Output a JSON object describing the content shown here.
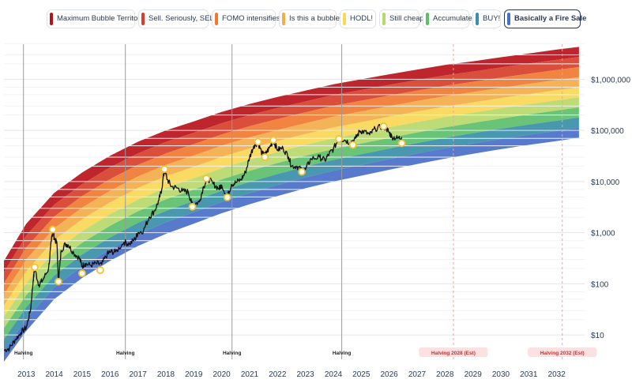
{
  "legend": [
    {
      "label": "Maximum Bubble Territory",
      "color": "#b8121b"
    },
    {
      "label": "Sell. Seriously, SELL!",
      "color": "#d6402a"
    },
    {
      "label": "FOMO intensifies",
      "color": "#ef7a30"
    },
    {
      "label": "Is this a bubble?",
      "color": "#f4ad4a"
    },
    {
      "label": "HODL!",
      "color": "#f8d857"
    },
    {
      "label": "Still cheap",
      "color": "#b7d86a"
    },
    {
      "label": "Accumulate",
      "color": "#5cbf6c"
    },
    {
      "label": "BUY!",
      "color": "#3a8fa8"
    },
    {
      "label": "Basically a Fire Sale",
      "color": "#4a6fc8"
    }
  ],
  "colors": {
    "bands": [
      "#b8121b",
      "#d6402a",
      "#ef7a30",
      "#f4ad4a",
      "#f8d857",
      "#b7d86a",
      "#5cbf6c",
      "#3a8fa8",
      "#4a6fc8"
    ],
    "price_line": "#111111",
    "marker_stroke": "#f2c22e",
    "halving_line": "#9a9a9a",
    "halving_est_line": "#f2a0a0"
  },
  "chart_data": {
    "type": "line",
    "title": "",
    "xlabel": "",
    "ylabel": "",
    "y_scale": "log",
    "x_range": [
      2012.2,
      2033
    ],
    "y_range": [
      3,
      6000000
    ],
    "y_ticks": [
      {
        "value": 10,
        "label": "$10"
      },
      {
        "value": 100,
        "label": "$100"
      },
      {
        "value": 1000,
        "label": "$1,000"
      },
      {
        "value": 10000,
        "label": "$10,000"
      },
      {
        "value": 100000,
        "label": "$100,000"
      },
      {
        "value": 1000000,
        "label": "$1,000,000"
      }
    ],
    "x_ticks": [
      {
        "value": 2013,
        "label": "2013"
      },
      {
        "value": 2014,
        "label": "2014"
      },
      {
        "value": 2015,
        "label": "2015"
      },
      {
        "value": 2016,
        "label": "2016"
      },
      {
        "value": 2017,
        "label": "2017"
      },
      {
        "value": 2018,
        "label": "2018"
      },
      {
        "value": 2019,
        "label": "2019"
      },
      {
        "value": 2020,
        "label": "2020"
      },
      {
        "value": 2021,
        "label": "2021"
      },
      {
        "value": 2022,
        "label": "2022"
      },
      {
        "value": 2023,
        "label": "2023"
      },
      {
        "value": 2024,
        "label": "2024"
      },
      {
        "value": 2025,
        "label": "2025"
      },
      {
        "value": 2026,
        "label": "2026"
      },
      {
        "value": 2027,
        "label": "2027"
      },
      {
        "value": 2028,
        "label": "2028"
      },
      {
        "value": 2029,
        "label": "2029"
      },
      {
        "value": 2030,
        "label": "2030"
      },
      {
        "value": 2031,
        "label": "2031"
      },
      {
        "value": 2032,
        "label": "2032"
      }
    ],
    "halvings": [
      {
        "x": 2012.9,
        "label": "Halving",
        "estimated": false
      },
      {
        "x": 2016.55,
        "label": "Halving",
        "estimated": false
      },
      {
        "x": 2020.37,
        "label": "Halving",
        "estimated": false
      },
      {
        "x": 2024.3,
        "label": "Halving",
        "estimated": false
      },
      {
        "x": 2028.3,
        "label": "Halving 2028 (Est)",
        "estimated": true
      },
      {
        "x": 2032.2,
        "label": "Halving 2032 (Est)",
        "estimated": true
      }
    ],
    "rainbow_bands": {
      "count": 9,
      "top_curve": [
        [
          2012.2,
          280
        ],
        [
          2013.0,
          1500
        ],
        [
          2014.0,
          6000
        ],
        [
          2015.0,
          15000
        ],
        [
          2016.0,
          32000
        ],
        [
          2017.0,
          60000
        ],
        [
          2018.0,
          100000
        ],
        [
          2019.0,
          150000
        ],
        [
          2020.0,
          230000
        ],
        [
          2021.0,
          330000
        ],
        [
          2022.0,
          450000
        ],
        [
          2023.0,
          600000
        ],
        [
          2024.0,
          800000
        ],
        [
          2025.0,
          1000000
        ],
        [
          2026.0,
          1250000
        ],
        [
          2027.0,
          1550000
        ],
        [
          2028.0,
          1900000
        ],
        [
          2029.0,
          2250000
        ],
        [
          2030.0,
          2700000
        ],
        [
          2031.0,
          3200000
        ],
        [
          2032.0,
          3800000
        ],
        [
          2032.8,
          4300000
        ]
      ],
      "bottom_curve": [
        [
          2012.2,
          3
        ],
        [
          2013.0,
          12
        ],
        [
          2014.0,
          50
        ],
        [
          2015.0,
          130
        ],
        [
          2016.0,
          280
        ],
        [
          2017.0,
          550
        ],
        [
          2018.0,
          950
        ],
        [
          2019.0,
          1500
        ],
        [
          2020.0,
          2400
        ],
        [
          2021.0,
          3600
        ],
        [
          2022.0,
          5200
        ],
        [
          2023.0,
          7400
        ],
        [
          2024.0,
          10000
        ],
        [
          2025.0,
          13000
        ],
        [
          2026.0,
          17000
        ],
        [
          2027.0,
          22000
        ],
        [
          2028.0,
          28000
        ],
        [
          2029.0,
          35000
        ],
        [
          2030.0,
          43000
        ],
        [
          2031.0,
          52000
        ],
        [
          2032.0,
          62000
        ],
        [
          2032.8,
          72000
        ]
      ]
    },
    "series": [
      {
        "name": "",
        "points": [
          [
            2012.2,
            5
          ],
          [
            2012.4,
            5.5
          ],
          [
            2012.6,
            8
          ],
          [
            2012.8,
            11
          ],
          [
            2013.0,
            14
          ],
          [
            2013.15,
            30
          ],
          [
            2013.25,
            120
          ],
          [
            2013.3,
            200
          ],
          [
            2013.45,
            95
          ],
          [
            2013.6,
            120
          ],
          [
            2013.8,
            200
          ],
          [
            2013.9,
            700
          ],
          [
            2013.95,
            1150
          ],
          [
            2014.0,
            800
          ],
          [
            2014.1,
            600
          ],
          [
            2014.15,
            110
          ],
          [
            2014.25,
            450
          ],
          [
            2014.4,
            600
          ],
          [
            2014.5,
            580
          ],
          [
            2014.7,
            400
          ],
          [
            2014.9,
            320
          ],
          [
            2015.0,
            220
          ],
          [
            2015.1,
            250
          ],
          [
            2015.3,
            230
          ],
          [
            2015.5,
            250
          ],
          [
            2015.7,
            240
          ],
          [
            2015.9,
            380
          ],
          [
            2016.0,
            420
          ],
          [
            2016.2,
            420
          ],
          [
            2016.5,
            650
          ],
          [
            2016.7,
            600
          ],
          [
            2016.9,
            750
          ],
          [
            2017.0,
            1000
          ],
          [
            2017.2,
            1100
          ],
          [
            2017.4,
            2000
          ],
          [
            2017.6,
            2700
          ],
          [
            2017.75,
            4300
          ],
          [
            2017.85,
            7000
          ],
          [
            2017.95,
            17500
          ],
          [
            2018.05,
            11000
          ],
          [
            2018.2,
            8000
          ],
          [
            2018.4,
            7500
          ],
          [
            2018.6,
            6500
          ],
          [
            2018.8,
            6300
          ],
          [
            2018.92,
            3800
          ],
          [
            2019.0,
            3600
          ],
          [
            2019.2,
            4000
          ],
          [
            2019.35,
            8000
          ],
          [
            2019.5,
            11500
          ],
          [
            2019.7,
            9000
          ],
          [
            2019.9,
            7200
          ],
          [
            2020.0,
            8500
          ],
          [
            2020.2,
            5000
          ],
          [
            2020.35,
            8800
          ],
          [
            2020.5,
            9500
          ],
          [
            2020.7,
            11000
          ],
          [
            2020.85,
            15000
          ],
          [
            2021.0,
            30000
          ],
          [
            2021.15,
            50000
          ],
          [
            2021.3,
            58000
          ],
          [
            2021.45,
            35000
          ],
          [
            2021.55,
            33000
          ],
          [
            2021.7,
            45000
          ],
          [
            2021.85,
            63000
          ],
          [
            2022.0,
            42000
          ],
          [
            2022.2,
            45000
          ],
          [
            2022.4,
            30000
          ],
          [
            2022.5,
            20000
          ],
          [
            2022.7,
            20000
          ],
          [
            2022.87,
            16500
          ],
          [
            2023.0,
            17000
          ],
          [
            2023.2,
            28000
          ],
          [
            2023.5,
            30000
          ],
          [
            2023.7,
            26000
          ],
          [
            2023.85,
            35000
          ],
          [
            2024.0,
            43000
          ],
          [
            2024.2,
            70000
          ],
          [
            2024.4,
            65000
          ],
          [
            2024.6,
            58000
          ],
          [
            2024.8,
            70000
          ],
          [
            2024.95,
            98000
          ],
          [
            2025.1,
            95000
          ],
          [
            2025.3,
            82000
          ],
          [
            2025.5,
            108000
          ],
          [
            2025.75,
            118000
          ],
          [
            2025.9,
            110000
          ],
          [
            2026.0,
            90000
          ],
          [
            2026.1,
            75000
          ],
          [
            2026.3,
            70000
          ],
          [
            2026.45,
            74000
          ]
        ]
      }
    ],
    "highlighted_points": [
      [
        2013.3,
        210
      ],
      [
        2013.95,
        1150
      ],
      [
        2014.15,
        110
      ],
      [
        2015.0,
        160
      ],
      [
        2015.65,
        185
      ],
      [
        2017.95,
        17500
      ],
      [
        2018.95,
        3200
      ],
      [
        2019.45,
        11500
      ],
      [
        2020.2,
        4900
      ],
      [
        2021.3,
        60000
      ],
      [
        2021.55,
        30000
      ],
      [
        2021.85,
        65000
      ],
      [
        2022.87,
        15500
      ],
      [
        2024.2,
        68000
      ],
      [
        2024.7,
        52000
      ],
      [
        2025.8,
        120000
      ],
      [
        2026.45,
        56000
      ]
    ]
  }
}
